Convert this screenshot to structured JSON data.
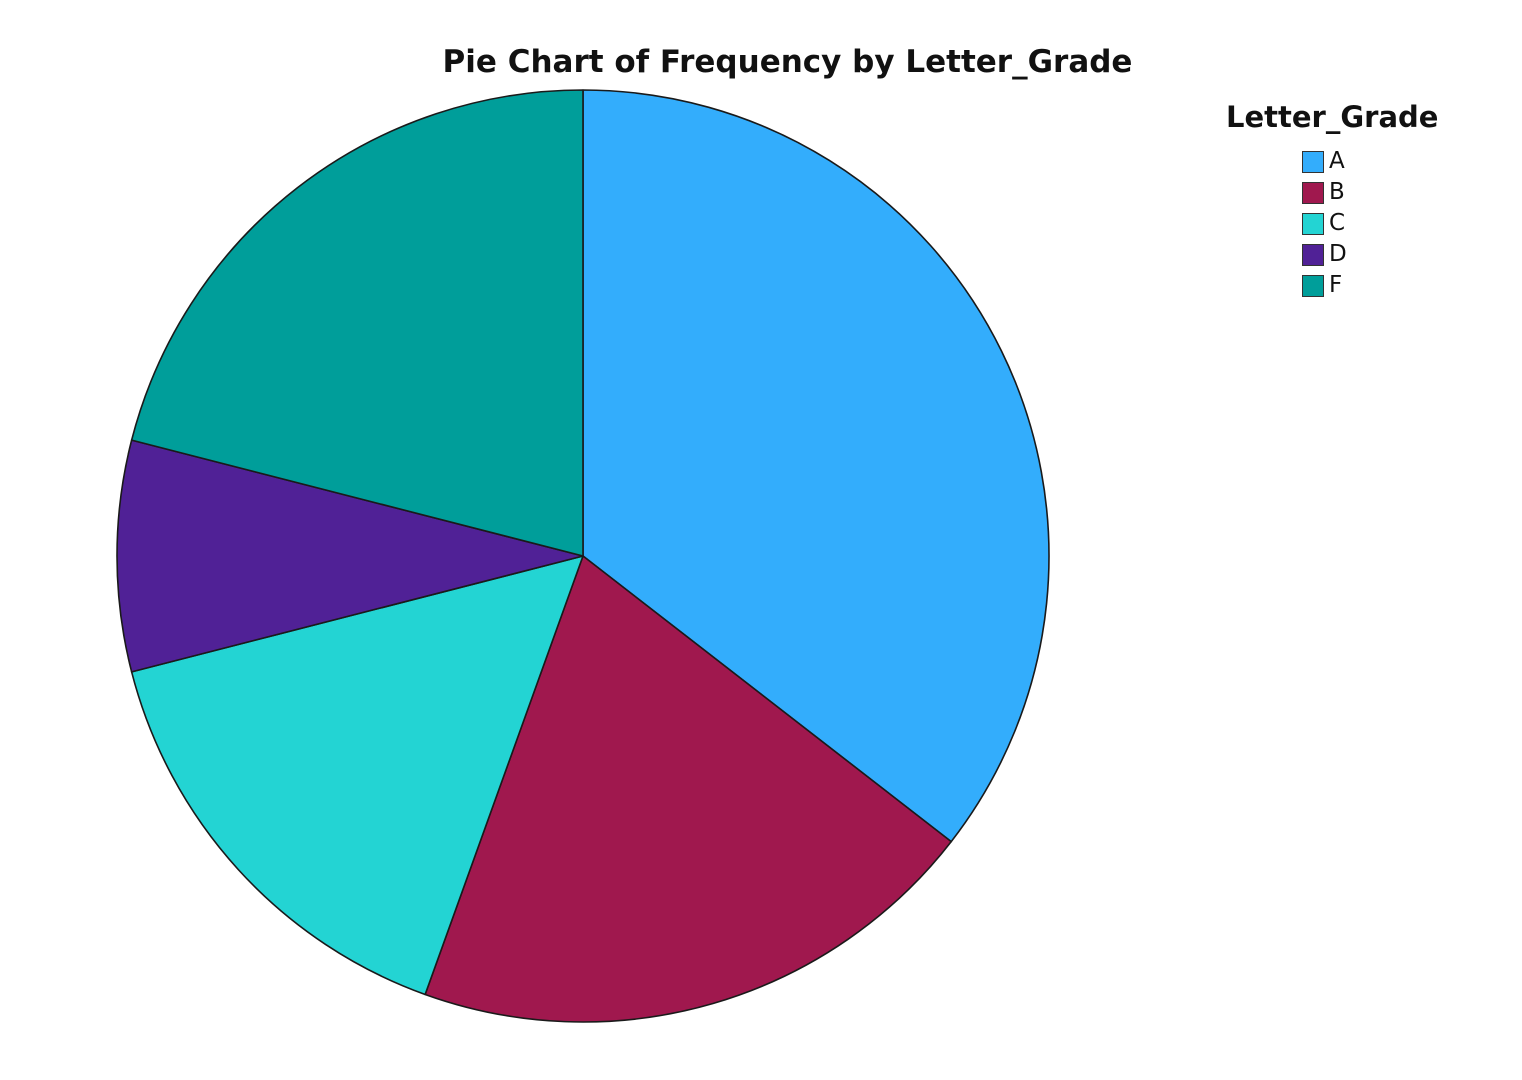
{
  "chart_data": {
    "type": "pie",
    "title": "Pie Chart of Frequency by Letter_Grade",
    "legend_title": "Letter_Grade",
    "legend_position": "top-right",
    "categories": [
      "A",
      "B",
      "C",
      "D",
      "F"
    ],
    "values": [
      35.5,
      20,
      15.5,
      8,
      21
    ],
    "colors": [
      "#33adfc",
      "#a0184e",
      "#23d4d3",
      "#502196",
      "#009e9a"
    ],
    "start_angle": "12 o'clock",
    "direction": "clockwise"
  }
}
